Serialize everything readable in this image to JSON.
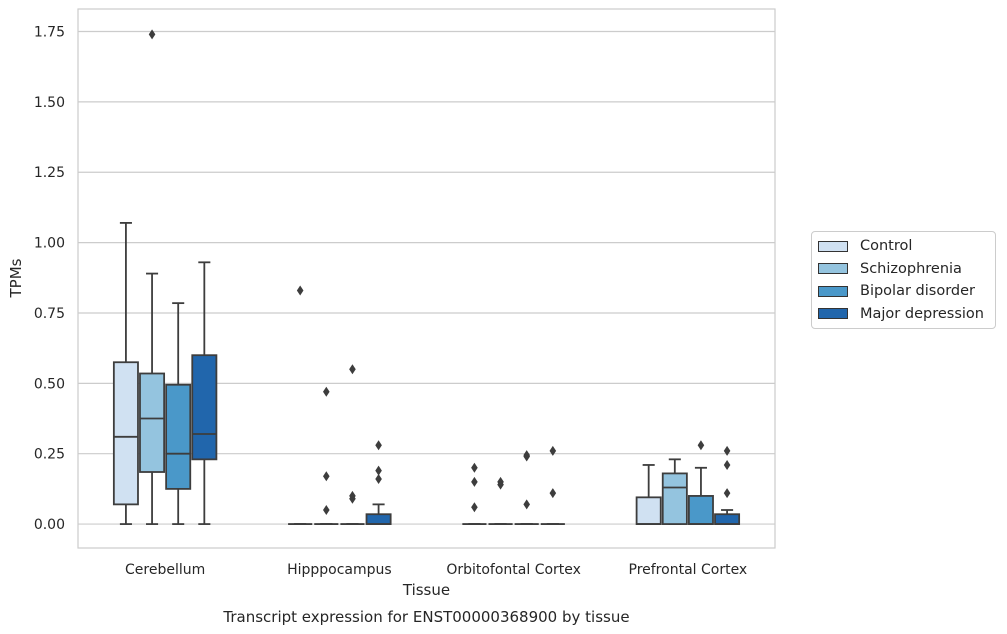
{
  "chart_data": {
    "type": "box",
    "title": "Transcript expression for ENST00000368900 by tissue",
    "xlabel": "Tissue",
    "ylabel": "TPMs",
    "ylim": [
      -0.085,
      1.83
    ],
    "yticks": [
      "0.00",
      "0.25",
      "0.50",
      "0.75",
      "1.00",
      "1.25",
      "1.50",
      "1.75"
    ],
    "grid": "horizontal",
    "legend_placement": "right",
    "categories": [
      "Cerebellum",
      "Hipppocampus",
      "Orbitofontal Cortex",
      "Prefrontal Cortex"
    ],
    "series": [
      {
        "name": "Control",
        "color": "#d0e1f2",
        "boxes": [
          {
            "q1": 0.07,
            "median": 0.31,
            "q3": 0.575,
            "whisker_low": 0.0,
            "whisker_high": 1.07,
            "outliers": []
          },
          {
            "q1": 0.0,
            "median": 0.0,
            "q3": 0.0,
            "whisker_low": 0.0,
            "whisker_high": 0.0,
            "outliers": [
              0.83
            ]
          },
          {
            "q1": 0.0,
            "median": 0.0,
            "q3": 0.0,
            "whisker_low": 0.0,
            "whisker_high": 0.0,
            "outliers": [
              0.2,
              0.15,
              0.06
            ]
          },
          {
            "q1": 0.0,
            "median": 0.0,
            "q3": 0.095,
            "whisker_low": 0.0,
            "whisker_high": 0.21,
            "outliers": []
          }
        ]
      },
      {
        "name": "Schizophrenia",
        "color": "#94c4df",
        "boxes": [
          {
            "q1": 0.185,
            "median": 0.375,
            "q3": 0.535,
            "whisker_low": 0.0,
            "whisker_high": 0.89,
            "outliers": [
              1.74
            ]
          },
          {
            "q1": 0.0,
            "median": 0.0,
            "q3": 0.0,
            "whisker_low": 0.0,
            "whisker_high": 0.0,
            "outliers": [
              0.47,
              0.17,
              0.05
            ]
          },
          {
            "q1": 0.0,
            "median": 0.0,
            "q3": 0.0,
            "whisker_low": 0.0,
            "whisker_high": 0.0,
            "outliers": [
              0.15,
              0.14
            ]
          },
          {
            "q1": 0.0,
            "median": 0.13,
            "q3": 0.18,
            "whisker_low": 0.0,
            "whisker_high": 0.23,
            "outliers": []
          }
        ]
      },
      {
        "name": "Bipolar disorder",
        "color": "#4a98c9",
        "boxes": [
          {
            "q1": 0.125,
            "median": 0.25,
            "q3": 0.495,
            "whisker_low": 0.0,
            "whisker_high": 0.785,
            "outliers": []
          },
          {
            "q1": 0.0,
            "median": 0.0,
            "q3": 0.0,
            "whisker_low": 0.0,
            "whisker_high": 0.0,
            "outliers": [
              0.55,
              0.1,
              0.09
            ]
          },
          {
            "q1": 0.0,
            "median": 0.0,
            "q3": 0.0,
            "whisker_low": 0.0,
            "whisker_high": 0.0,
            "outliers": [
              0.245,
              0.24,
              0.07
            ]
          },
          {
            "q1": 0.0,
            "median": 0.0,
            "q3": 0.1,
            "whisker_low": 0.0,
            "whisker_high": 0.2,
            "outliers": [
              0.28
            ]
          }
        ]
      },
      {
        "name": "Major depression",
        "color": "#2166ac",
        "boxes": [
          {
            "q1": 0.23,
            "median": 0.32,
            "q3": 0.6,
            "whisker_low": 0.0,
            "whisker_high": 0.93,
            "outliers": []
          },
          {
            "q1": 0.0,
            "median": 0.0,
            "q3": 0.035,
            "whisker_low": 0.0,
            "whisker_high": 0.07,
            "outliers": [
              0.28,
              0.19,
              0.16
            ]
          },
          {
            "q1": 0.0,
            "median": 0.0,
            "q3": 0.0,
            "whisker_low": 0.0,
            "whisker_high": 0.0,
            "outliers": [
              0.26,
              0.11
            ]
          },
          {
            "q1": 0.0,
            "median": 0.0,
            "q3": 0.035,
            "whisker_low": 0.0,
            "whisker_high": 0.05,
            "outliers": [
              0.26,
              0.21,
              0.11
            ]
          }
        ]
      }
    ]
  }
}
